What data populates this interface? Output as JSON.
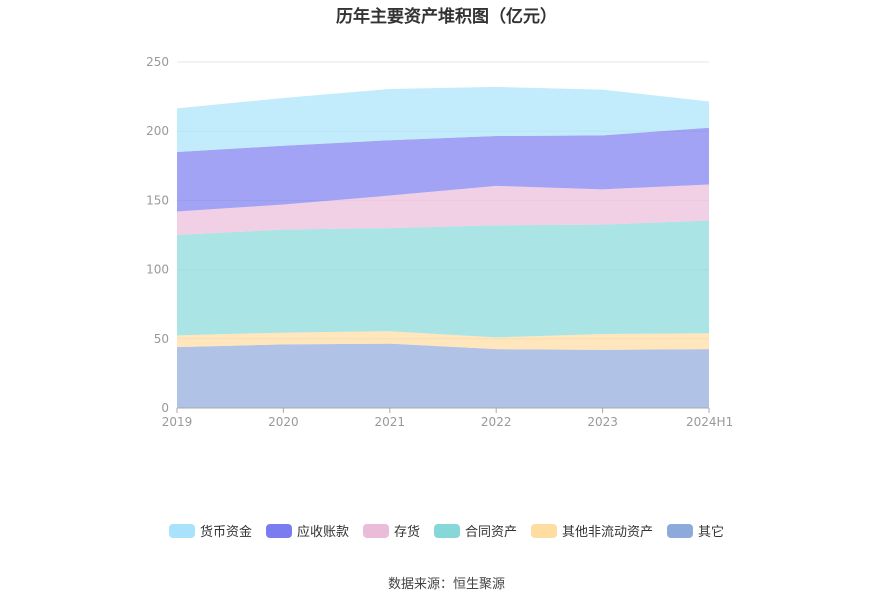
{
  "chart_data": {
    "type": "area",
    "stacked": true,
    "title": "历年主要资产堆积图（亿元）",
    "categories": [
      "2019",
      "2020",
      "2021",
      "2022",
      "2023",
      "2024H1"
    ],
    "ylim": [
      0,
      250
    ],
    "yticks": [
      0,
      50,
      100,
      150,
      200,
      250
    ],
    "grid": true,
    "legend_position": "bottom",
    "series": [
      {
        "name": "其它",
        "color": "#8eaadb",
        "values": [
          44,
          46,
          46.5,
          42.5,
          42,
          42.5
        ]
      },
      {
        "name": "其他非流动资产",
        "color": "#ffdca0",
        "values": [
          8.5,
          8.5,
          9,
          8.5,
          11.5,
          11.5
        ]
      },
      {
        "name": "合同资产",
        "color": "#86d8d8",
        "values": [
          72.5,
          74.5,
          74.5,
          81,
          79,
          81.5
        ]
      },
      {
        "name": "存货",
        "color": "#ebbcda",
        "values": [
          17,
          18,
          23.5,
          28.5,
          25.5,
          26
        ]
      },
      {
        "name": "应收账款",
        "color": "#7b7cf0",
        "values": [
          43,
          42.5,
          40,
          36,
          39,
          41
        ]
      },
      {
        "name": "货币资金",
        "color": "#a8e2fb",
        "values": [
          31.5,
          34.5,
          37,
          35.5,
          33,
          19
        ]
      }
    ],
    "legend_order": [
      "货币资金",
      "应收账款",
      "存货",
      "合同资产",
      "其他非流动资产",
      "其它"
    ]
  },
  "source_text": "数据来源：恒生聚源"
}
